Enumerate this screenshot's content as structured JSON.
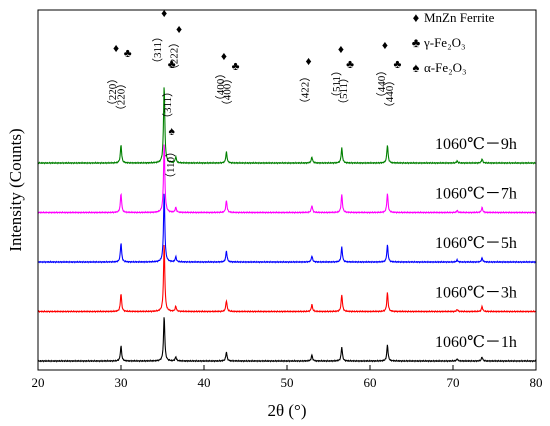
{
  "chart_data": {
    "type": "line",
    "xlabel": "2θ (°)",
    "ylabel": "Intensity (Counts)",
    "xlim": [
      20,
      80
    ],
    "x_ticks": [
      20,
      30,
      40,
      50,
      60,
      70,
      80
    ],
    "y_ticks_shown": false,
    "grid": false,
    "legend_position": "top-right",
    "legend": [
      {
        "symbol": "♦",
        "label": "MnZn Ferrite"
      },
      {
        "symbol": "♣",
        "label": "γ-Fe₂O₃"
      },
      {
        "symbol": "♠",
        "label": "α-Fe₂O₃"
      }
    ],
    "series": [
      {
        "name": "1060℃－1h",
        "color": "#000000",
        "offset": 0,
        "peaks": [
          [
            30.0,
            15
          ],
          [
            35.2,
            45
          ],
          [
            36.6,
            4
          ],
          [
            42.7,
            9
          ],
          [
            53.0,
            6
          ],
          [
            56.6,
            14
          ],
          [
            62.1,
            16
          ],
          [
            70.5,
            2
          ],
          [
            73.5,
            4
          ]
        ]
      },
      {
        "name": "1060℃－3h",
        "color": "#ff0000",
        "offset": 1,
        "peaks": [
          [
            30.0,
            18
          ],
          [
            35.2,
            68
          ],
          [
            36.6,
            5
          ],
          [
            42.7,
            11
          ],
          [
            53.0,
            7
          ],
          [
            56.6,
            17
          ],
          [
            62.1,
            19
          ],
          [
            70.5,
            2
          ],
          [
            73.5,
            5
          ]
        ]
      },
      {
        "name": "1060℃－5h",
        "color": "#0000ff",
        "offset": 2,
        "peaks": [
          [
            30.0,
            19
          ],
          [
            35.2,
            70
          ],
          [
            36.6,
            5
          ],
          [
            42.7,
            11
          ],
          [
            53.0,
            6
          ],
          [
            56.6,
            15
          ],
          [
            62.1,
            17
          ],
          [
            70.5,
            2
          ],
          [
            73.5,
            4
          ]
        ]
      },
      {
        "name": "1060℃－7h",
        "color": "#ff00ff",
        "offset": 3,
        "peaks": [
          [
            30.0,
            19
          ],
          [
            35.2,
            70
          ],
          [
            36.6,
            5
          ],
          [
            42.7,
            12
          ],
          [
            53.0,
            7
          ],
          [
            56.6,
            18
          ],
          [
            62.1,
            19
          ],
          [
            70.5,
            2
          ],
          [
            73.5,
            5
          ]
        ]
      },
      {
        "name": "1060℃－9h",
        "color": "#008000",
        "offset": 4,
        "peaks": [
          [
            30.0,
            18
          ],
          [
            35.2,
            78
          ],
          [
            36.6,
            6
          ],
          [
            42.7,
            11
          ],
          [
            53.0,
            6
          ],
          [
            56.6,
            15
          ],
          [
            62.1,
            18
          ],
          [
            70.5,
            2
          ],
          [
            73.5,
            4
          ]
        ]
      }
    ],
    "annotations": [
      {
        "x": 30.0,
        "text": "（220）",
        "symbol": "♦"
      },
      {
        "x": 30.8,
        "text": "（220）",
        "symbol": "♣"
      },
      {
        "x": 35.2,
        "text": "（311）",
        "symbol": "♦"
      },
      {
        "x": 36.6,
        "text": "（222）",
        "symbol": "♦"
      },
      {
        "x": 36.1,
        "text": "（311）",
        "symbol": "♣"
      },
      {
        "x": 42.7,
        "text": "（400）",
        "symbol": "♦"
      },
      {
        "x": 43.5,
        "text": "（400）",
        "symbol": "♣"
      },
      {
        "x": 53.0,
        "text": "（422）",
        "symbol": "♦"
      },
      {
        "x": 56.6,
        "text": "（511）",
        "symbol": "♦"
      },
      {
        "x": 57.4,
        "text": "（511）",
        "symbol": "♣"
      },
      {
        "x": 62.1,
        "text": "（440）",
        "symbol": "♦"
      },
      {
        "x": 62.9,
        "text": "（440）",
        "symbol": "♣"
      },
      {
        "x": 36.1,
        "text": "（110）",
        "symbol": "♠"
      }
    ]
  }
}
